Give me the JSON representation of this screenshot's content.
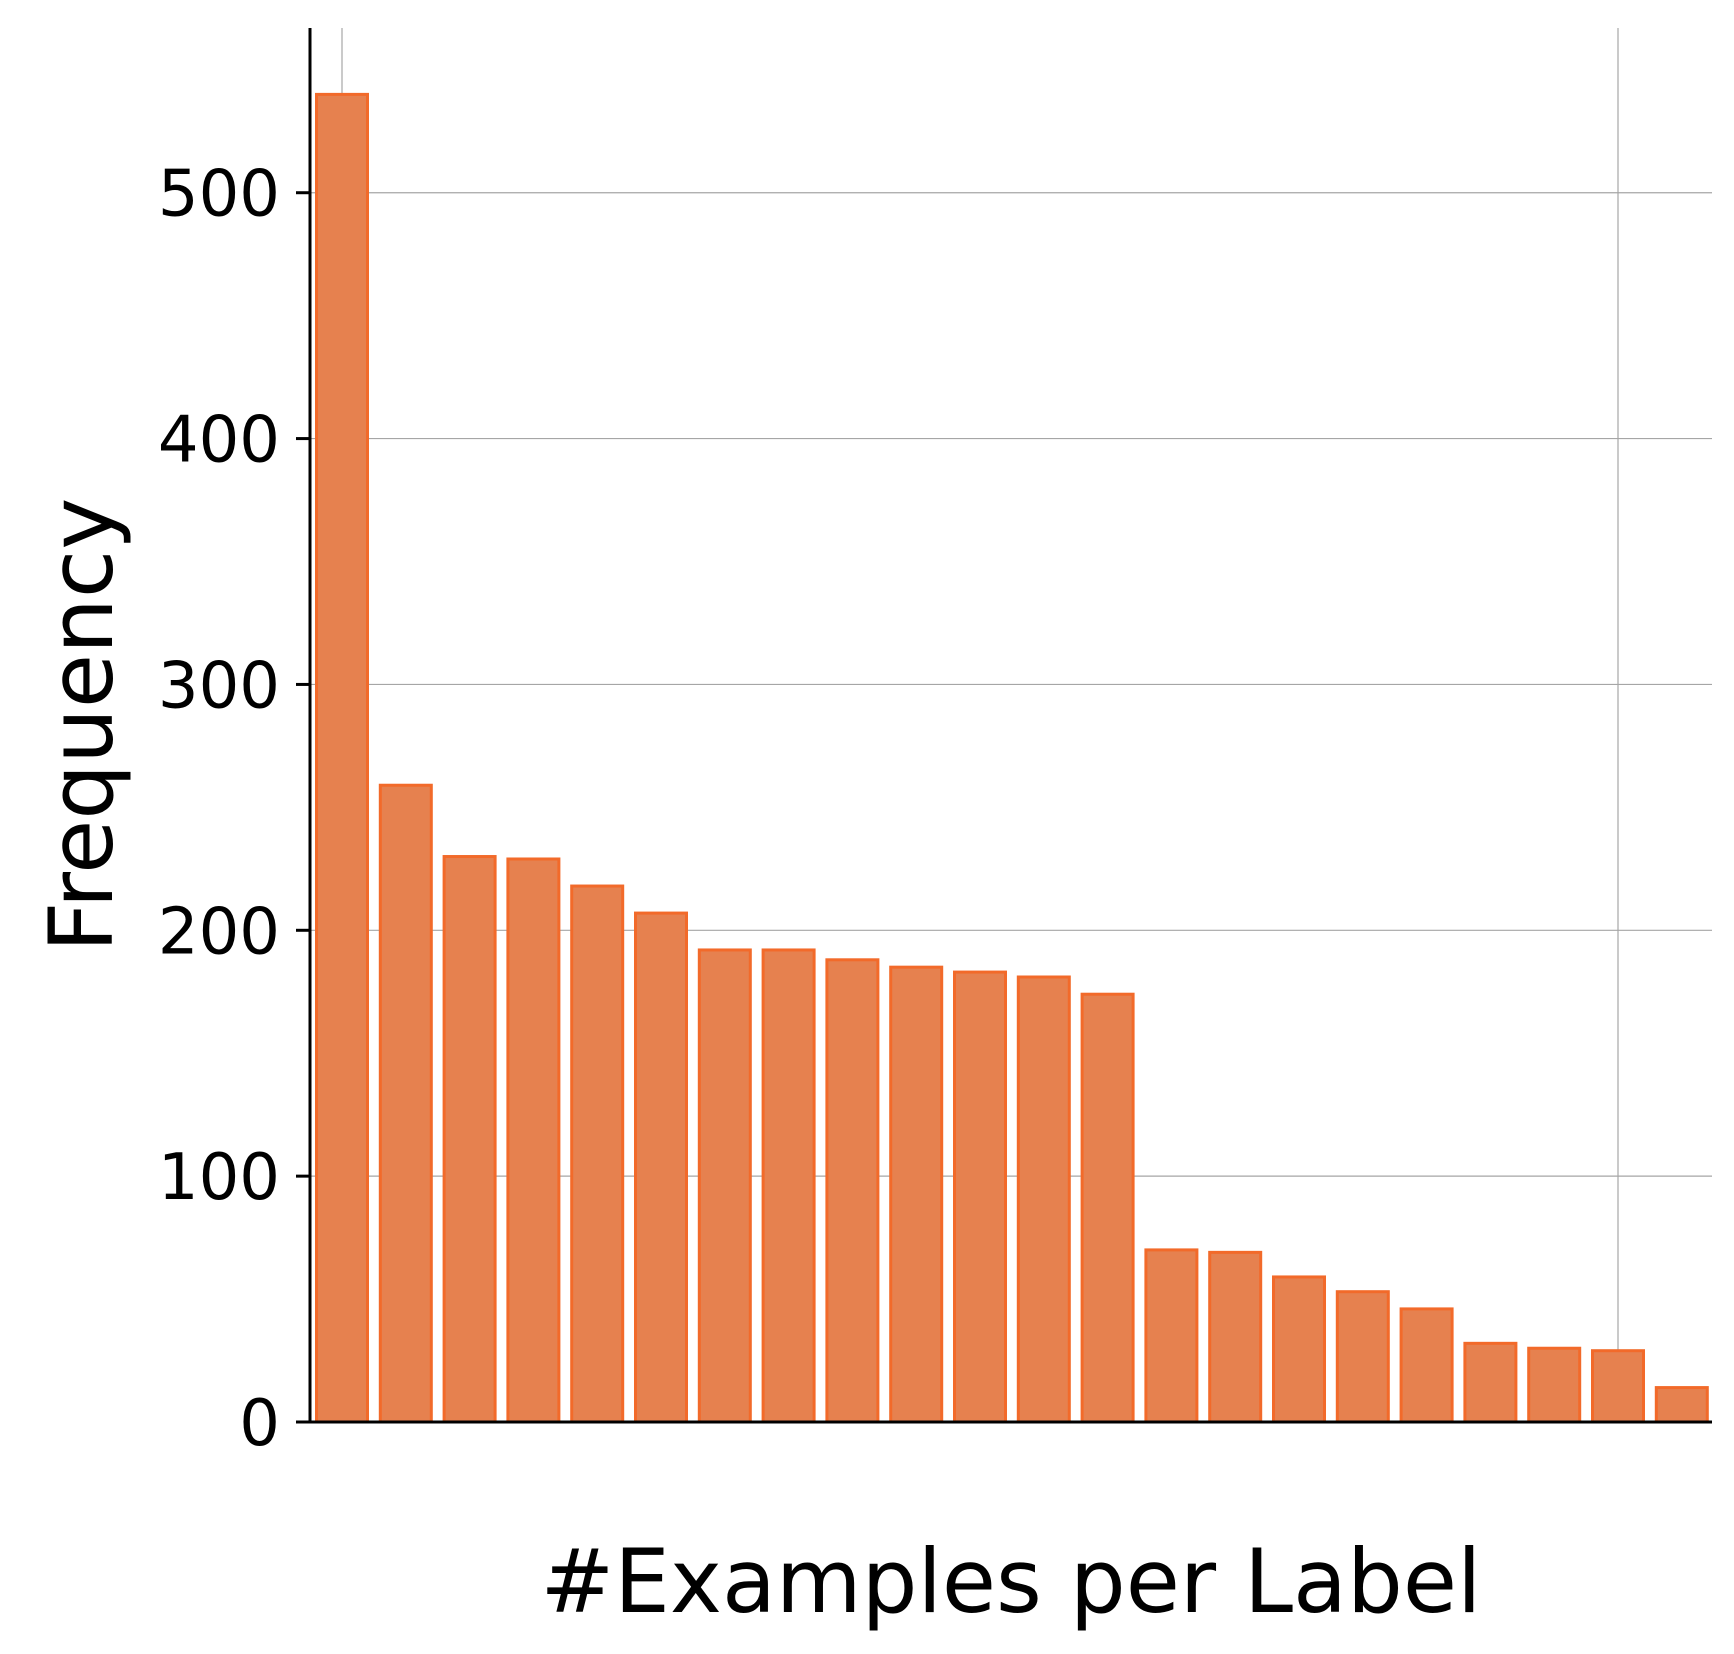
{
  "chart_data": {
    "type": "bar",
    "xlabel": "#Examples per Label",
    "ylabel": "Frequency",
    "ylim": [
      0,
      567
    ],
    "yticks": [
      0,
      100,
      200,
      300,
      400,
      500
    ],
    "grid": true,
    "bar_color": "#e6814f",
    "bar_edge_color": "#f26a2a",
    "values": [
      540,
      259,
      230,
      229,
      218,
      207,
      192,
      192,
      188,
      185,
      183,
      181,
      174,
      70,
      69,
      59,
      53,
      46,
      32,
      30,
      29,
      14
    ]
  }
}
